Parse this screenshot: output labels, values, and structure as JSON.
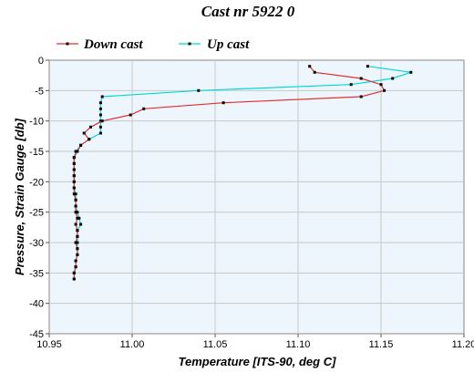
{
  "chart_data": {
    "type": "line",
    "title": "Cast nr 5922 0",
    "xlabel": "Temperature [ITS-90, deg C]",
    "ylabel": "Pressure, Strain Gauge [db]",
    "xlim": [
      10.95,
      11.2
    ],
    "ylim": [
      -45,
      0
    ],
    "xticks": [
      "10.95",
      "11.00",
      "11.05",
      "11.10",
      "11.15",
      "11.20"
    ],
    "yticks": [
      "0",
      "-5",
      "-10",
      "-15",
      "-20",
      "-25",
      "-30",
      "-35",
      "-40",
      "-45"
    ],
    "grid": true,
    "legend_position": "top",
    "series": [
      {
        "name": "Down cast",
        "color": "#e03030",
        "points": [
          [
            11.107,
            -1.0
          ],
          [
            11.11,
            -2.0
          ],
          [
            11.138,
            -3.0
          ],
          [
            11.15,
            -4.0
          ],
          [
            11.152,
            -5.0
          ],
          [
            11.138,
            -6.0
          ],
          [
            11.055,
            -7.0
          ],
          [
            11.007,
            -8.0
          ],
          [
            10.999,
            -9.0
          ],
          [
            10.982,
            -10.0
          ],
          [
            10.975,
            -11.0
          ],
          [
            10.971,
            -12.0
          ],
          [
            10.974,
            -13.0
          ],
          [
            10.969,
            -14.0
          ],
          [
            10.967,
            -15.0
          ],
          [
            10.965,
            -16.0
          ],
          [
            10.965,
            -17.0
          ],
          [
            10.965,
            -18.0
          ],
          [
            10.965,
            -19.0
          ],
          [
            10.965,
            -20.0
          ],
          [
            10.965,
            -21.0
          ],
          [
            10.965,
            -22.0
          ],
          [
            10.966,
            -23.0
          ],
          [
            10.966,
            -24.0
          ],
          [
            10.966,
            -25.0
          ],
          [
            10.967,
            -26.0
          ],
          [
            10.966,
            -27.0
          ],
          [
            10.967,
            -28.0
          ],
          [
            10.967,
            -29.0
          ],
          [
            10.966,
            -30.0
          ],
          [
            10.967,
            -31.0
          ],
          [
            10.967,
            -32.0
          ],
          [
            10.966,
            -33.0
          ],
          [
            10.966,
            -34.0
          ],
          [
            10.965,
            -35.0
          ],
          [
            10.965,
            -36.0
          ]
        ]
      },
      {
        "name": "Up cast",
        "color": "#00d8d8",
        "points": [
          [
            10.965,
            -36.0
          ],
          [
            10.965,
            -35.0
          ],
          [
            10.966,
            -34.0
          ],
          [
            10.966,
            -33.0
          ],
          [
            10.967,
            -32.0
          ],
          [
            10.967,
            -31.0
          ],
          [
            10.967,
            -30.0
          ],
          [
            10.967,
            -29.0
          ],
          [
            10.967,
            -28.0
          ],
          [
            10.969,
            -27.0
          ],
          [
            10.968,
            -26.0
          ],
          [
            10.967,
            -25.0
          ],
          [
            10.966,
            -24.0
          ],
          [
            10.966,
            -23.0
          ],
          [
            10.966,
            -22.0
          ],
          [
            10.965,
            -21.0
          ],
          [
            10.965,
            -20.0
          ],
          [
            10.965,
            -19.0
          ],
          [
            10.965,
            -18.0
          ],
          [
            10.965,
            -17.0
          ],
          [
            10.965,
            -16.0
          ],
          [
            10.966,
            -15.0
          ],
          [
            10.969,
            -14.0
          ],
          [
            10.974,
            -13.0
          ],
          [
            10.981,
            -12.0
          ],
          [
            10.981,
            -11.0
          ],
          [
            10.981,
            -10.0
          ],
          [
            10.981,
            -9.0
          ],
          [
            10.981,
            -8.0
          ],
          [
            10.981,
            -7.0
          ],
          [
            10.982,
            -6.0
          ],
          [
            11.04,
            -5.0
          ],
          [
            11.132,
            -4.0
          ],
          [
            11.157,
            -3.0
          ],
          [
            11.168,
            -2.0
          ],
          [
            11.142,
            -1.0
          ]
        ]
      }
    ]
  }
}
